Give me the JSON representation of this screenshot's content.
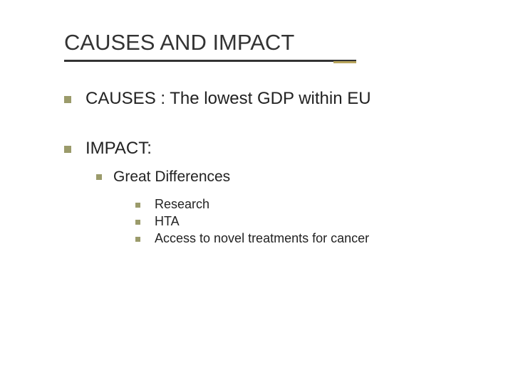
{
  "title": "CAUSES AND IMPACT",
  "bullets": {
    "level1": [
      "CAUSES : The lowest GDP within EU",
      "IMPACT:"
    ],
    "level2": "Great Differences",
    "level3": [
      "Research",
      "HTA",
      "Access to novel treatments for cancer"
    ]
  },
  "colors": {
    "bullet": "#9b9b6b",
    "text": "#222222",
    "rule": "#333333",
    "accent": "#b8a45c",
    "background": "#ffffff"
  },
  "fonts": {
    "title_size": 31,
    "level1_size": 24,
    "level2_size": 21,
    "level3_size": 18,
    "family": "Verdana"
  }
}
